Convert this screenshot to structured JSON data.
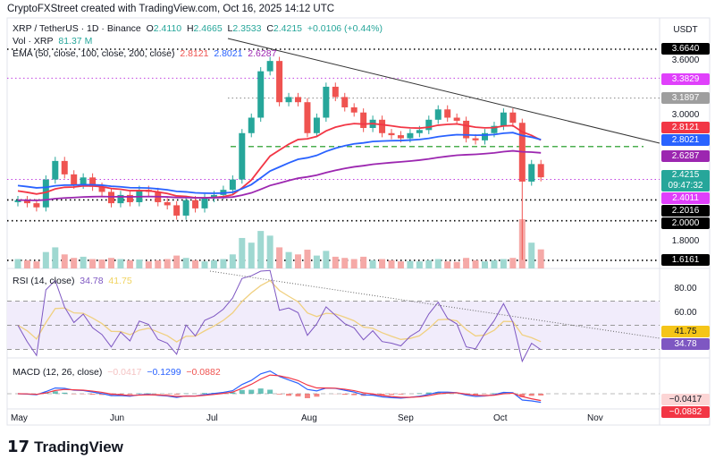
{
  "credit": "CryptoFXStreet created with TradingView.com, Oct 16, 2025 14:12 UTC",
  "symbol": "XRP / TetherUS · 1D · Binance",
  "ohlc": {
    "o": "2.4110",
    "h": "2.4665",
    "l": "2.3533",
    "c": "2.4215",
    "chg": "+0.0106 (+0.44%)"
  },
  "vol": {
    "label": "Vol · XRP",
    "value": "81.37 M"
  },
  "ema": {
    "label": "EMA (50, close, 100, close, 200, close)",
    "v50": "2.8121",
    "v100": "2.8021",
    "v200": "2.6287"
  },
  "currency": "USDT",
  "price_tags": [
    {
      "v": "3.6640",
      "color": "#000000"
    },
    {
      "v": "3.3829",
      "color": "#e040fb"
    },
    {
      "v": "3.1897",
      "color": "#9e9e9e"
    },
    {
      "v": "2.8121",
      "color": "#f23645"
    },
    {
      "v": "2.8021",
      "color": "#2962ff"
    },
    {
      "v": "2.6287",
      "color": "#9c27b0"
    },
    {
      "v": "2.4011",
      "color": "#e040fb"
    },
    {
      "v": "2.2016",
      "color": "#000000"
    },
    {
      "v": "2.0000",
      "color": "#000000"
    },
    {
      "v": "1.6161",
      "color": "#000000"
    }
  ],
  "last_price": {
    "v": "2.4215",
    "countdown": "09:47:32",
    "color": "#26a69a"
  },
  "price_axis": [
    "3.6000",
    "3.0000",
    "1.8000"
  ],
  "rsi": {
    "label": "RSI (14, close)",
    "value": "34.78",
    "ma": "41.75",
    "axis": [
      "80.00",
      "60.00"
    ]
  },
  "macd": {
    "label": "MACD (12, 26, close)",
    "hist": "−0.0417",
    "macd": "−0.1299",
    "signal": "−0.0882",
    "tag_hist": "−0.0417",
    "tag_signal": "−0.0882"
  },
  "months": [
    "May",
    "Jun",
    "Jul",
    "Aug",
    "Sep",
    "Oct",
    "Nov"
  ],
  "brand": "TradingView",
  "chart_data": {
    "type": "candlestick",
    "interval_days": 3,
    "dates": [
      "May 1",
      "May 4",
      "May 7",
      "May 10",
      "May 13",
      "May 16",
      "May 19",
      "May 22",
      "May 25",
      "May 28",
      "May 31",
      "Jun 3",
      "Jun 6",
      "Jun 9",
      "Jun 12",
      "Jun 15",
      "Jun 18",
      "Jun 21",
      "Jun 24",
      "Jun 27",
      "Jun 30",
      "Jul 3",
      "Jul 6",
      "Jul 9",
      "Jul 12",
      "Jul 15",
      "Jul 18",
      "Jul 21",
      "Jul 24",
      "Jul 27",
      "Jul 30",
      "Aug 2",
      "Aug 5",
      "Aug 8",
      "Aug 11",
      "Aug 14",
      "Aug 17",
      "Aug 20",
      "Aug 23",
      "Aug 26",
      "Aug 29",
      "Sep 1",
      "Sep 4",
      "Sep 7",
      "Sep 10",
      "Sep 13",
      "Sep 16",
      "Sep 19",
      "Sep 22",
      "Sep 25",
      "Sep 28",
      "Oct 1",
      "Oct 4",
      "Oct 7",
      "Oct 10",
      "Oct 13",
      "Oct 16"
    ],
    "close": [
      2.2,
      2.17,
      2.13,
      2.4,
      2.58,
      2.45,
      2.35,
      2.42,
      2.33,
      2.28,
      2.17,
      2.25,
      2.18,
      2.3,
      2.28,
      2.18,
      2.15,
      2.05,
      2.2,
      2.12,
      2.22,
      2.25,
      2.3,
      2.4,
      2.85,
      3.0,
      3.45,
      3.55,
      3.15,
      3.2,
      3.15,
      2.85,
      3.0,
      3.3,
      3.2,
      3.1,
      3.05,
      2.9,
      2.98,
      2.85,
      2.83,
      2.8,
      2.85,
      2.88,
      2.98,
      3.08,
      3.0,
      2.97,
      2.8,
      2.78,
      2.85,
      2.92,
      3.05,
      2.95,
      2.38,
      2.55,
      2.4215
    ],
    "volume_m": [
      40,
      35,
      30,
      70,
      90,
      60,
      45,
      50,
      40,
      38,
      45,
      40,
      35,
      38,
      30,
      35,
      40,
      55,
      45,
      35,
      30,
      35,
      40,
      60,
      130,
      110,
      160,
      140,
      90,
      70,
      60,
      80,
      55,
      75,
      50,
      45,
      40,
      50,
      35,
      40,
      35,
      30,
      32,
      30,
      35,
      40,
      30,
      28,
      45,
      35,
      30,
      35,
      40,
      45,
      210,
      110,
      81.37
    ],
    "y_range": [
      1.55,
      3.75
    ],
    "levels": {
      "dotted_black": [
        3.664,
        2.2016,
        2.0,
        1.6161
      ],
      "dotted_magenta": [
        3.3829,
        2.4011
      ],
      "dotted_gray": [
        3.1897
      ],
      "dashed_green": [
        2.72
      ]
    },
    "ema_colors": {
      "ema50": "#f23645",
      "ema100": "#2962ff",
      "ema200": "#9c27b0"
    }
  }
}
